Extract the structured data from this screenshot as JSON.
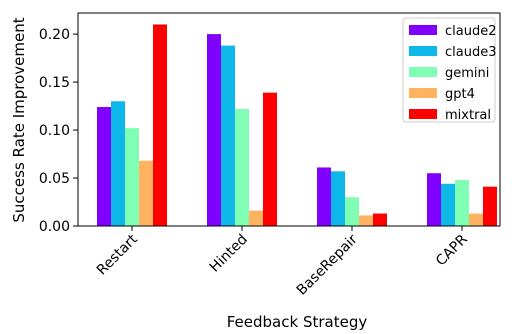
{
  "chart_data": {
    "type": "bar",
    "title": "",
    "xlabel": "Feedback Strategy",
    "ylabel": "Success Rate Improvement",
    "categories": [
      "Restart",
      "Hinted",
      "BaseRepair",
      "CAPR"
    ],
    "yticks": [
      "0.00",
      "0.05",
      "0.10",
      "0.15",
      "0.20"
    ],
    "ylim": [
      0,
      0.222
    ],
    "legend_position": "top-right",
    "series": [
      {
        "name": "claude2",
        "color": "#7f00ff",
        "values": [
          0.124,
          0.2,
          0.061,
          0.055
        ]
      },
      {
        "name": "claude3",
        "color": "#0db7e8",
        "values": [
          0.13,
          0.188,
          0.057,
          0.044
        ]
      },
      {
        "name": "gemini",
        "color": "#80ffb4",
        "values": [
          0.102,
          0.122,
          0.03,
          0.048
        ]
      },
      {
        "name": "gpt4",
        "color": "#ffb360",
        "values": [
          0.068,
          0.016,
          0.011,
          0.013
        ]
      },
      {
        "name": "mixtral",
        "color": "#ff0000",
        "values": [
          0.21,
          0.139,
          0.013,
          0.041
        ]
      }
    ]
  }
}
